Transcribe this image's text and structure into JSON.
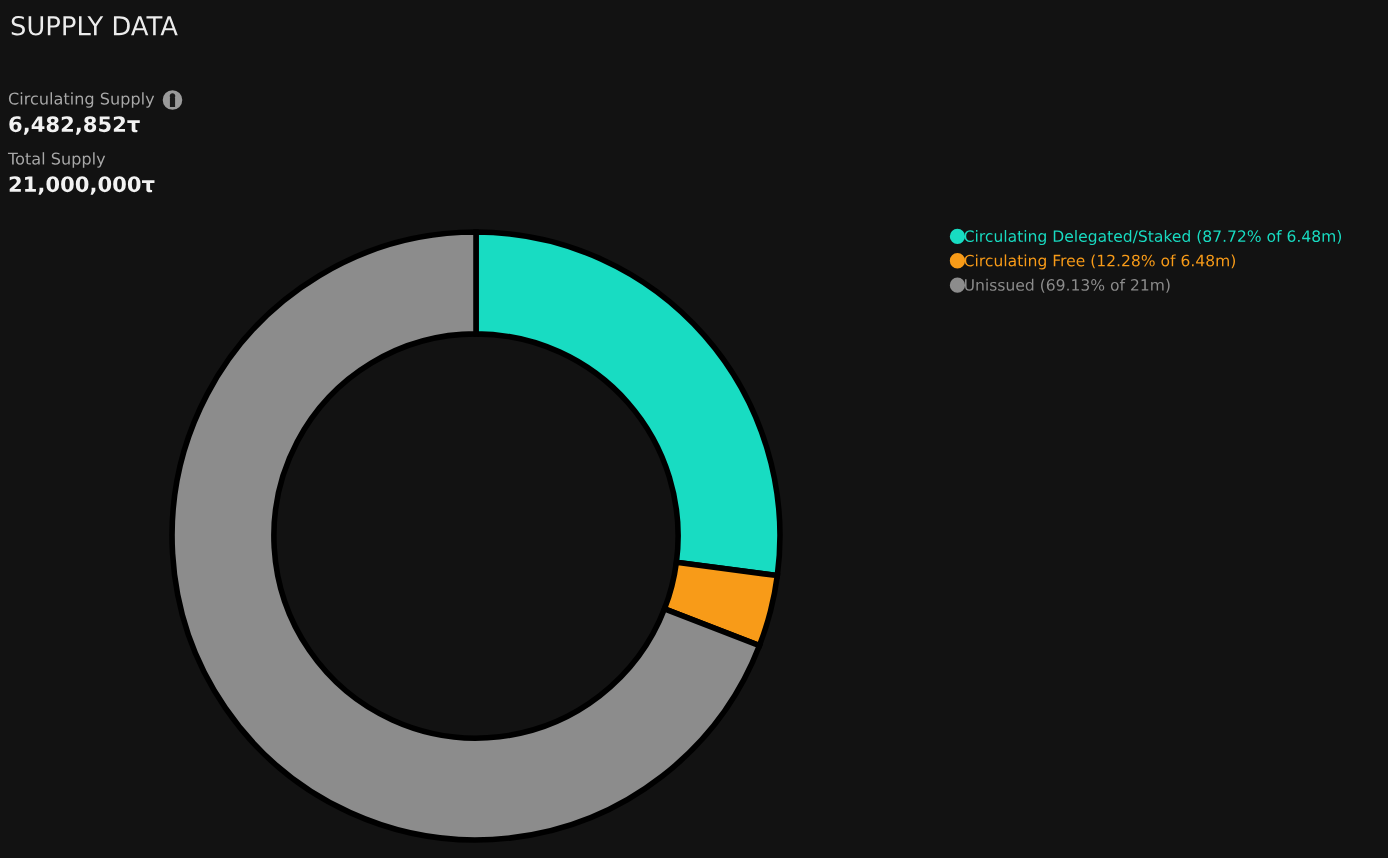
{
  "chart_data": {
    "type": "donut",
    "title": "SUPPLY DATA",
    "categories": [
      "Circulating Delegated/Staked (87.72% of 6.48m)",
      "Circulating Free (12.28% of 6.48m)",
      "Unissued (69.13% of 21m)"
    ],
    "values": [
      27.08,
      3.79,
      69.13
    ],
    "colors": [
      "#18dcc2",
      "#f89b18",
      "#8c8c8c"
    ],
    "legend": "right",
    "annotations": [
      "Circulating Supply",
      "6,482,852τ",
      "Total Supply",
      "21,000,000τ"
    ]
  }
}
